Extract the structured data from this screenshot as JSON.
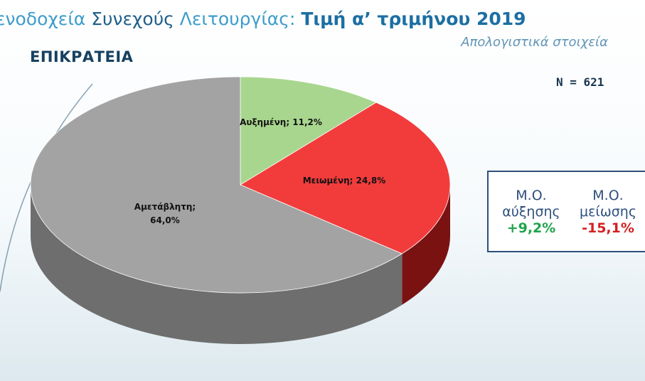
{
  "header": {
    "title_part1": "ενοδοχεία ",
    "title_part2": "Συνεχούς",
    "title_part3": " Λειτουργίας: ",
    "title_part4": "Τιμή α’ τριμήνου 2019",
    "subtitle": "Απολογιστικά στοιχεία",
    "region": "ΕΠΙΚΡΑΤΕΙΑ",
    "sample": "N = 621"
  },
  "stats": {
    "increase_label_1": "Μ.Ο.",
    "increase_label_2": "αύξησης",
    "increase_value": "+9,2%",
    "decrease_label_1": "Μ.Ο.",
    "decrease_label_2": "μείωσης",
    "decrease_value": "-15,1%"
  },
  "chart_data": {
    "type": "pie",
    "title": "",
    "slices": [
      {
        "name": "Αυξημένη",
        "value": 11.2,
        "label": "Αυξημένη; 11,2%",
        "color": "#a8d68f",
        "side_color": "#6f9a5a"
      },
      {
        "name": "Μειωμένη",
        "value": 24.8,
        "label": "Μειωμένη; 24,8%",
        "color": "#f23c3c",
        "side_color": "#7a1212"
      },
      {
        "name": "Αμετάβλητη",
        "value": 64.0,
        "label_line1": "Αμετάβλητη;",
        "label_line2": "64,0%",
        "color": "#a3a3a3",
        "side_color": "#6e6e6e"
      }
    ]
  }
}
